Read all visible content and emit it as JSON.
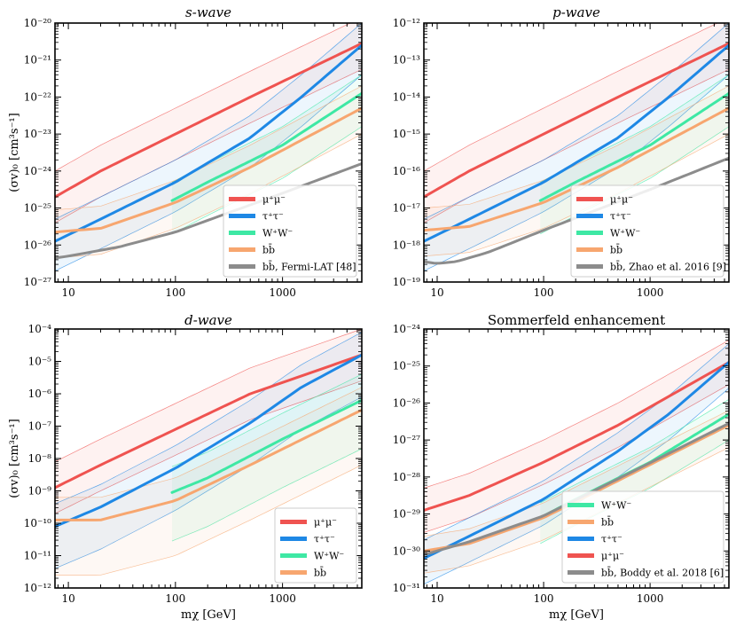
{
  "colors": {
    "mumu": "#ef5350",
    "tautau": "#1e88e5",
    "ww": "#3ee8a4",
    "bb": "#f7a66f",
    "fermi": "#8c8c8c"
  },
  "chart_data": [
    {
      "type": "line",
      "title": "s-wave",
      "title_display": "s-wave",
      "xlabel": "",
      "ylabel": "(σv)₀ [cm³s⁻¹]",
      "xscale": "log",
      "yscale": "log",
      "xlim": [
        7.5,
        5500
      ],
      "ylim_exp": [
        -27,
        -20
      ],
      "xticks": [
        {
          "v": 10,
          "label": "10"
        },
        {
          "v": 100,
          "label": "100"
        },
        {
          "v": 1000,
          "label": "1000"
        }
      ],
      "yticks": [
        {
          "e": -27,
          "label": "10⁻²⁷"
        },
        {
          "e": -26,
          "label": "10⁻²⁶"
        },
        {
          "e": -25,
          "label": "10⁻²⁵"
        },
        {
          "e": -24,
          "label": "10⁻²⁴"
        },
        {
          "e": -23,
          "label": "10⁻²³"
        },
        {
          "e": -22,
          "label": "10⁻²²"
        },
        {
          "e": -21,
          "label": "10⁻²¹"
        },
        {
          "e": -20,
          "label": "10⁻²⁰"
        }
      ],
      "series": [
        {
          "key": "mumu",
          "name": "μ⁺μ⁻",
          "x": [
            7.5,
            20,
            100,
            500,
            5500
          ],
          "y_exp": [
            -24.7,
            -24.0,
            -23.0,
            -22.0,
            -20.55
          ],
          "band_up": 0.7,
          "band_down": 0.7
        },
        {
          "key": "tautau",
          "name": "τ⁺τ⁻",
          "x": [
            7.5,
            20,
            100,
            500,
            1500,
            5500
          ],
          "y_exp": [
            -25.9,
            -25.3,
            -24.3,
            -23.1,
            -22.0,
            -20.6
          ],
          "band_up": 0.6,
          "band_down": 0.8
        },
        {
          "key": "ww",
          "name": "W⁺W⁻",
          "x": [
            93,
            200,
            1000,
            5500
          ],
          "y_exp": [
            -24.8,
            -24.3,
            -23.3,
            -21.9
          ],
          "band_up": 0.5,
          "band_down": 0.9
        },
        {
          "key": "bb",
          "name": "bb̄",
          "x": [
            7.5,
            20,
            100,
            500,
            5500
          ],
          "y_exp": [
            -25.65,
            -25.55,
            -24.85,
            -23.9,
            -22.3
          ],
          "band_up": 0.6,
          "band_down": 0.7
        },
        {
          "key": "fermi",
          "name": "bb̄, Fermi-LAT [48]",
          "x": [
            7.5,
            10,
            30,
            100,
            1000,
            5500
          ],
          "y_exp": [
            -26.35,
            -26.3,
            -26.05,
            -25.65,
            -24.6,
            -23.8
          ],
          "band_up": 0,
          "band_down": 0
        }
      ],
      "legend_order": [
        "mumu",
        "tautau",
        "ww",
        "bb",
        "fermi"
      ],
      "legend_loc": "lower right"
    },
    {
      "type": "line",
      "title": "p-wave",
      "title_display": "p-wave",
      "xlabel": "",
      "ylabel": "",
      "xscale": "log",
      "yscale": "log",
      "xlim": [
        7.5,
        5500
      ],
      "ylim_exp": [
        -19,
        -12
      ],
      "xticks": [
        {
          "v": 10,
          "label": "10"
        },
        {
          "v": 100,
          "label": "100"
        },
        {
          "v": 1000,
          "label": "1000"
        }
      ],
      "yticks": [
        {
          "e": -19,
          "label": "10⁻¹⁹"
        },
        {
          "e": -18,
          "label": "10⁻¹⁸"
        },
        {
          "e": -17,
          "label": "10⁻¹⁷"
        },
        {
          "e": -16,
          "label": "10⁻¹⁶"
        },
        {
          "e": -15,
          "label": "10⁻¹⁵"
        },
        {
          "e": -14,
          "label": "10⁻¹⁴"
        },
        {
          "e": -13,
          "label": "10⁻¹³"
        },
        {
          "e": -12,
          "label": "10⁻¹²"
        }
      ],
      "series": [
        {
          "key": "mumu",
          "name": "μ⁺μ⁻",
          "x": [
            7.5,
            20,
            100,
            500,
            5500
          ],
          "y_exp": [
            -16.7,
            -16.0,
            -15.0,
            -14.0,
            -12.55
          ],
          "band_up": 0.7,
          "band_down": 0.7
        },
        {
          "key": "tautau",
          "name": "τ⁺τ⁻",
          "x": [
            7.5,
            20,
            100,
            500,
            1500,
            5500
          ],
          "y_exp": [
            -17.9,
            -17.3,
            -16.3,
            -15.1,
            -14.0,
            -12.6
          ],
          "band_up": 0.6,
          "band_down": 0.8
        },
        {
          "key": "ww",
          "name": "W⁺W⁻",
          "x": [
            93,
            200,
            1000,
            5500
          ],
          "y_exp": [
            -16.8,
            -16.3,
            -15.3,
            -13.9
          ],
          "band_up": 0.5,
          "band_down": 0.9
        },
        {
          "key": "bb",
          "name": "bb̄",
          "x": [
            7.5,
            20,
            100,
            500,
            5500
          ],
          "y_exp": [
            -17.6,
            -17.5,
            -16.85,
            -15.9,
            -14.3
          ],
          "band_up": 0.6,
          "band_down": 0.7
        },
        {
          "key": "fermi",
          "name": "bb̄, Zhao et al. 2016 [9]",
          "x": [
            7.5,
            10,
            15,
            30,
            100,
            1000,
            5500
          ],
          "y_exp": [
            -18.45,
            -18.5,
            -18.45,
            -18.2,
            -17.6,
            -16.5,
            -15.65
          ],
          "band_up": 0,
          "band_down": 0
        }
      ],
      "legend_order": [
        "mumu",
        "tautau",
        "ww",
        "bb",
        "fermi"
      ],
      "legend_loc": "lower right"
    },
    {
      "type": "line",
      "title": "d-wave",
      "title_display": "d-wave",
      "xlabel": "mχ [GeV]",
      "ylabel": "(σv)₀ [cm³s⁻¹]",
      "xscale": "log",
      "yscale": "log",
      "xlim": [
        7.5,
        5500
      ],
      "ylim_exp": [
        -12,
        -4
      ],
      "xticks": [
        {
          "v": 10,
          "label": "10"
        },
        {
          "v": 100,
          "label": "100"
        },
        {
          "v": 1000,
          "label": "1000"
        }
      ],
      "yticks": [
        {
          "e": -12,
          "label": "10⁻¹²"
        },
        {
          "e": -11,
          "label": "10⁻¹¹"
        },
        {
          "e": -10,
          "label": "10⁻¹⁰"
        },
        {
          "e": -9,
          "label": "10⁻⁹"
        },
        {
          "e": -8,
          "label": "10⁻⁸"
        },
        {
          "e": -7,
          "label": "10⁻⁷"
        },
        {
          "e": -6,
          "label": "10⁻⁶"
        },
        {
          "e": -5,
          "label": "10⁻⁵"
        },
        {
          "e": -4,
          "label": "10⁻⁴"
        }
      ],
      "series": [
        {
          "key": "mumu",
          "name": "μ⁺μ⁻",
          "x": [
            7.5,
            20,
            100,
            500,
            5500
          ],
          "y_exp": [
            -8.9,
            -8.2,
            -7.1,
            -6.0,
            -4.8
          ],
          "band_up": 0.8,
          "band_down": 0.8
        },
        {
          "key": "tautau",
          "name": "τ⁺τ⁻",
          "x": [
            7.5,
            20,
            100,
            500,
            1500,
            5500
          ],
          "y_exp": [
            -10.1,
            -9.5,
            -8.3,
            -6.9,
            -5.8,
            -4.8
          ],
          "band_up": 0.7,
          "band_down": 1.3
        },
        {
          "key": "ww",
          "name": "W⁺W⁻",
          "x": [
            93,
            200,
            1000,
            5500
          ],
          "y_exp": [
            -9.05,
            -8.6,
            -7.4,
            -6.2
          ],
          "band_up": 0.8,
          "band_down": 1.5
        },
        {
          "key": "bb",
          "name": "bb̄",
          "x": [
            7.5,
            20,
            100,
            500,
            5500
          ],
          "y_exp": [
            -9.9,
            -9.9,
            -9.3,
            -8.2,
            -6.5
          ],
          "band_up": 0.7,
          "band_down": 1.7
        }
      ],
      "legend_order": [
        "mumu",
        "tautau",
        "ww",
        "bb"
      ],
      "legend_loc": "lower right"
    },
    {
      "type": "line",
      "title": "Sommerfeld enhancement",
      "title_display": "Sommerfeld enhancement",
      "xlabel": "mχ [GeV]",
      "ylabel": "",
      "xscale": "log",
      "yscale": "log",
      "xlim": [
        7.5,
        5500
      ],
      "ylim_exp": [
        -31,
        -24
      ],
      "xticks": [
        {
          "v": 10,
          "label": "10"
        },
        {
          "v": 100,
          "label": "100"
        },
        {
          "v": 1000,
          "label": "1000"
        }
      ],
      "yticks": [
        {
          "e": -31,
          "label": "10⁻³¹"
        },
        {
          "e": -30,
          "label": "10⁻³⁰"
        },
        {
          "e": -29,
          "label": "10⁻²⁹"
        },
        {
          "e": -28,
          "label": "10⁻²⁸"
        },
        {
          "e": -27,
          "label": "10⁻²⁷"
        },
        {
          "e": -26,
          "label": "10⁻²⁶"
        },
        {
          "e": -25,
          "label": "10⁻²⁵"
        },
        {
          "e": -24,
          "label": "10⁻²⁴"
        }
      ],
      "series": [
        {
          "key": "mumu",
          "name": "μ⁺μ⁻",
          "x": [
            7.5,
            20,
            100,
            500,
            5500
          ],
          "y_exp": [
            -28.9,
            -28.5,
            -27.6,
            -26.6,
            -24.9
          ],
          "band_up": 0.6,
          "band_down": 0.6
        },
        {
          "key": "tautau",
          "name": "τ⁺τ⁻",
          "x": [
            7.5,
            20,
            100,
            500,
            1500,
            5500
          ],
          "y_exp": [
            -30.2,
            -29.6,
            -28.6,
            -27.3,
            -26.3,
            -24.9
          ],
          "band_up": 0.5,
          "band_down": 0.7
        },
        {
          "key": "ww",
          "name": "W⁺W⁻",
          "x": [
            93,
            200,
            1000,
            5500
          ],
          "y_exp": [
            -29.1,
            -28.6,
            -27.6,
            -26.3
          ],
          "band_up": 0.4,
          "band_down": 0.7
        },
        {
          "key": "bb",
          "name": "bb̄",
          "x": [
            7.5,
            20,
            100,
            500,
            5500
          ],
          "y_exp": [
            -30.0,
            -29.8,
            -29.1,
            -28.1,
            -26.6
          ],
          "band_up": 0.4,
          "band_down": 0.6
        },
        {
          "key": "fermi",
          "name": "bb̄, Boddy et al. 2018 [6]",
          "x": [
            7.5,
            20,
            100,
            500,
            5500
          ],
          "y_exp": [
            -30.1,
            -29.75,
            -29.05,
            -28.05,
            -26.55
          ],
          "band_up": 0,
          "band_down": 0
        }
      ],
      "legend_order": [
        "ww",
        "bb",
        "tautau",
        "mumu",
        "fermi"
      ],
      "legend_loc": "lower right"
    }
  ]
}
